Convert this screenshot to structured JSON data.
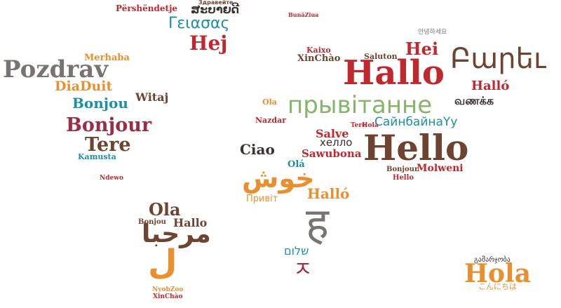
{
  "colors": {
    "red": "#c0282d",
    "teal": "#1c8fa6",
    "brown": "#6e4330",
    "gray": "#7a7470",
    "orange": "#e8902f",
    "green": "#85b46a",
    "wine": "#9b2d46",
    "dark": "#3a3330"
  },
  "words": [
    {
      "id": "word-pershendetje",
      "text": "Përshëndetje",
      "color": "red"
    },
    {
      "id": "word-lao-top",
      "text": "ສະບາຍດີ",
      "color": "dark"
    },
    {
      "id": "word-zdravite",
      "text": "Здравейте",
      "color": "brown"
    },
    {
      "id": "word-bunaziua",
      "text": "BunăZiua",
      "color": "red"
    },
    {
      "id": "word-geiasas-teal",
      "text": "Γειασας",
      "color": "teal"
    },
    {
      "id": "word-hej-large",
      "text": "Hej",
      "color": "red"
    },
    {
      "id": "word-annyeong-top",
      "text": "안녕하세요",
      "color": "gray"
    },
    {
      "id": "word-pozdrav-large",
      "text": "Pozdrav",
      "color": "gray"
    },
    {
      "id": "word-merhaba-orange",
      "text": "Merhaba",
      "color": "orange"
    },
    {
      "id": "word-diaduit",
      "text": "DiaDuit",
      "color": "orange"
    },
    {
      "id": "word-bonjou",
      "text": "Bonjou",
      "color": "teal"
    },
    {
      "id": "word-witaj",
      "text": "Witaj",
      "color": "brown"
    },
    {
      "id": "word-bonjour-large",
      "text": "Bonjour",
      "color": "wine"
    },
    {
      "id": "word-tere-large",
      "text": "Tere",
      "color": "brown"
    },
    {
      "id": "word-kamusta",
      "text": "Kamusta",
      "color": "teal"
    },
    {
      "id": "word-hallo-huge",
      "text": "Hallo",
      "color": "red"
    },
    {
      "id": "word-hei",
      "text": "Hei",
      "color": "red"
    },
    {
      "id": "word-barev-armenian",
      "text": "Բարեւ",
      "color": "brown"
    },
    {
      "id": "word-kaixo",
      "text": "Kaixo",
      "color": "red"
    },
    {
      "id": "word-xinchao",
      "text": "XinChào",
      "color": "brown"
    },
    {
      "id": "word-saluton",
      "text": "Saluton",
      "color": "brown"
    },
    {
      "id": "word-pryvitannie-large",
      "text": "прывітанне",
      "color": "green"
    },
    {
      "id": "word-vanakkam",
      "text": "வணக்க",
      "color": "dark"
    },
    {
      "id": "word-hallo-small-right",
      "text": "Halló",
      "color": "red"
    },
    {
      "id": "word-sainbaina",
      "text": "СайнбайнаYy",
      "color": "teal"
    },
    {
      "id": "word-hello-huge",
      "text": "Hello",
      "color": "brown"
    },
    {
      "id": "word-ciao",
      "text": "Ciao",
      "color": "dark"
    },
    {
      "id": "word-sawubona",
      "text": "Sawubona",
      "color": "red"
    },
    {
      "id": "word-hello-cyr",
      "text": "хелло",
      "color": "dark"
    },
    {
      "id": "word-salve",
      "text": "Salve",
      "color": "red"
    },
    {
      "id": "word-khosh-large",
      "text": "خوش",
      "color": "orange"
    },
    {
      "id": "word-hallo-mid",
      "text": "Halló",
      "color": "orange"
    },
    {
      "id": "word-pryvit",
      "text": "Привіт",
      "color": "orange"
    },
    {
      "id": "word-devanagari-large",
      "text": "ह",
      "color": "gray"
    },
    {
      "id": "word-olá",
      "text": "Olá",
      "color": "teal"
    },
    {
      "id": "word-hebrew",
      "text": "שלום",
      "color": "teal"
    },
    {
      "id": "word-ya",
      "text": "ㅈ",
      "color": "wine"
    },
    {
      "id": "word-molweni",
      "text": "Molweni",
      "color": "red"
    },
    {
      "id": "word-hello-right-small",
      "text": "Hello",
      "color": "red"
    },
    {
      "id": "word-bonjour-right",
      "text": "Bonjour",
      "color": "brown"
    },
    {
      "id": "word-ola-sa",
      "text": "Ola",
      "color": "brown"
    },
    {
      "id": "word-bonjou-sa",
      "text": "Bonjou",
      "color": "brown"
    },
    {
      "id": "word-hallo-sa",
      "text": "Hallo",
      "color": "brown"
    },
    {
      "id": "word-marhaba-arabic",
      "text": "مرحبا",
      "color": "brown"
    },
    {
      "id": "word-la-large",
      "text": "ل",
      "color": "orange"
    },
    {
      "id": "word-hola-large",
      "text": "Hola",
      "color": "orange"
    },
    {
      "id": "word-konnichiwa",
      "text": "こんにちは",
      "color": "orange"
    },
    {
      "id": "word-nyobzoo",
      "text": "NyobZoo",
      "color": "orange"
    },
    {
      "id": "word-xinchao-small",
      "text": "XinChào",
      "color": "red"
    },
    {
      "id": "word-ola-small",
      "text": "Ola",
      "color": "orange"
    },
    {
      "id": "word-nazdar",
      "text": "Nazdar",
      "color": "red"
    },
    {
      "id": "word-hola-small",
      "text": "Hola",
      "color": "red"
    },
    {
      "id": "word-tere-small",
      "text": "Tere",
      "color": "red"
    },
    {
      "id": "word-georgian",
      "text": "გამარჯობა",
      "color": "dark"
    },
    {
      "id": "word-ndewo",
      "text": "Ndewo",
      "color": "red"
    }
  ]
}
